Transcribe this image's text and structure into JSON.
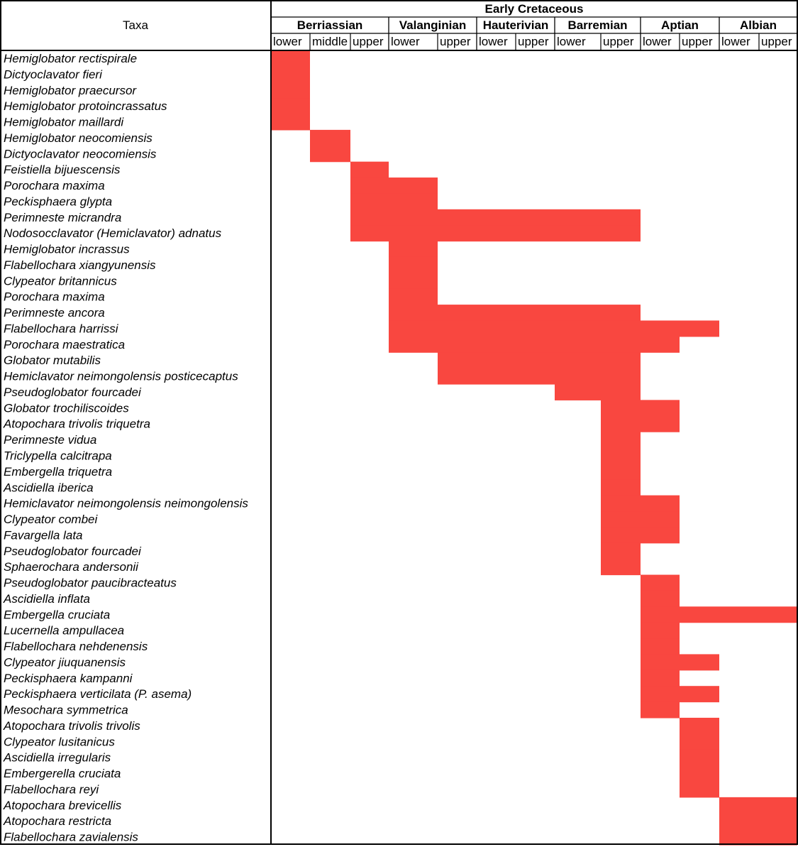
{
  "chart_data": {
    "type": "table",
    "taxa_header": "Taxa",
    "epoch": "Early Cretaceous",
    "stages": [
      {
        "name": "Berriassian",
        "substages": [
          "lower",
          "middle",
          "upper"
        ]
      },
      {
        "name": "Valanginian",
        "substages": [
          "lower",
          "upper"
        ]
      },
      {
        "name": "Hauterivian",
        "substages": [
          "lower",
          "upper"
        ]
      },
      {
        "name": "Barremian",
        "substages": [
          "lower",
          "upper"
        ]
      },
      {
        "name": "Aptian",
        "substages": [
          "lower",
          "upper"
        ]
      },
      {
        "name": "Albian",
        "substages": [
          "lower",
          "upper"
        ]
      }
    ],
    "bar_color": "#f94740",
    "taxa": [
      {
        "name": "Hemiglobator rectispirale",
        "range": [
          0,
          0
        ]
      },
      {
        "name": "Dictyoclavator fieri",
        "range": [
          0,
          0
        ]
      },
      {
        "name": "Hemiglobator praecursor",
        "range": [
          0,
          0
        ]
      },
      {
        "name": "Hemiglobator protoincrassatus",
        "range": [
          0,
          0
        ]
      },
      {
        "name": "Hemiglobator maillardi",
        "range": [
          0,
          0
        ]
      },
      {
        "name": "Hemiglobator neocomiensis",
        "range": [
          1,
          1
        ]
      },
      {
        "name": "Dictyoclavator neocomiensis",
        "range": [
          1,
          1
        ]
      },
      {
        "name": "Feistiella bijuescensis",
        "range": [
          2,
          2
        ]
      },
      {
        "name": "Porochara maxima",
        "range": [
          2,
          3
        ]
      },
      {
        "name": "Peckisphaera glypta",
        "range": [
          2,
          3
        ]
      },
      {
        "name": "Perimneste micrandra",
        "range": [
          2,
          8
        ]
      },
      {
        "name": "Nodosocclavator (Hemiclavator) adnatus",
        "range": [
          2,
          8
        ]
      },
      {
        "name": "Hemiglobator incrassus",
        "range": [
          3,
          3
        ]
      },
      {
        "name": "Flabellochara xiangyunensis",
        "range": [
          3,
          3
        ]
      },
      {
        "name": "Clypeator britannicus",
        "range": [
          3,
          3
        ]
      },
      {
        "name": "Porochara maxima",
        "range": [
          3,
          3
        ]
      },
      {
        "name": "Perimneste ancora",
        "range": [
          3,
          8
        ]
      },
      {
        "name": "Flabellochara harrissi",
        "range": [
          3,
          10
        ]
      },
      {
        "name": "Porochara maestratica",
        "range": [
          3,
          9
        ]
      },
      {
        "name": "Globator mutabilis",
        "range": [
          4,
          8
        ]
      },
      {
        "name": "Hemiclavator neimongolensis posticecaptus",
        "range": [
          4,
          8
        ]
      },
      {
        "name": "Pseudoglobator fourcadei",
        "range": [
          7,
          8
        ]
      },
      {
        "name": "Globator trochiliscoides",
        "range": [
          8,
          9
        ]
      },
      {
        "name": "Atopochara trivolis triquetra",
        "range": [
          8,
          9
        ]
      },
      {
        "name": "Perimneste vidua",
        "range": [
          8,
          8
        ]
      },
      {
        "name": "Triclypella calcitrapa",
        "range": [
          8,
          8
        ]
      },
      {
        "name": "Embergella triquetra",
        "range": [
          8,
          8
        ]
      },
      {
        "name": "Ascidiella iberica",
        "range": [
          8,
          8
        ]
      },
      {
        "name": "Hemiclavator neimongolensis neimongolensis",
        "range": [
          8,
          9
        ]
      },
      {
        "name": "Clypeator combei",
        "range": [
          8,
          9
        ]
      },
      {
        "name": "Favargella lata",
        "range": [
          8,
          9
        ]
      },
      {
        "name": "Pseudoglobator fourcadei",
        "range": [
          8,
          8
        ]
      },
      {
        "name": "Sphaerochara andersonii",
        "range": [
          8,
          8
        ]
      },
      {
        "name": "Pseudoglobator paucibracteatus",
        "range": [
          9,
          9
        ]
      },
      {
        "name": "Ascidiella inflata",
        "range": [
          9,
          9
        ]
      },
      {
        "name": "Embergella cruciata",
        "range": [
          9,
          12
        ]
      },
      {
        "name": "Lucernella ampullacea",
        "range": [
          9,
          9
        ]
      },
      {
        "name": "Flabellochara nehdenensis",
        "range": [
          9,
          9
        ]
      },
      {
        "name": "Clypeator jiuquanensis",
        "range": [
          9,
          10
        ]
      },
      {
        "name": "Peckisphaera kampanni",
        "range": [
          9,
          9
        ]
      },
      {
        "name": "Peckisphaera verticilata (P. asema)",
        "range": [
          9,
          10
        ]
      },
      {
        "name": "Mesochara symmetrica",
        "range": [
          9,
          9
        ]
      },
      {
        "name": "Atopochara trivolis trivolis",
        "range": [
          10,
          10
        ]
      },
      {
        "name": "Clypeator lusitanicus",
        "range": [
          10,
          10
        ]
      },
      {
        "name": "Ascidiella irregularis",
        "range": [
          10,
          10
        ]
      },
      {
        "name": "Embergerella cruciata",
        "range": [
          10,
          10
        ]
      },
      {
        "name": "Flabellochara reyi",
        "range": [
          10,
          10
        ]
      },
      {
        "name": "Atopochara brevicellis",
        "range": [
          11,
          12
        ]
      },
      {
        "name": "Atopochara restricta",
        "range": [
          11,
          12
        ]
      },
      {
        "name": "Flabellochara zavialensis",
        "range": [
          11,
          12
        ]
      }
    ]
  }
}
